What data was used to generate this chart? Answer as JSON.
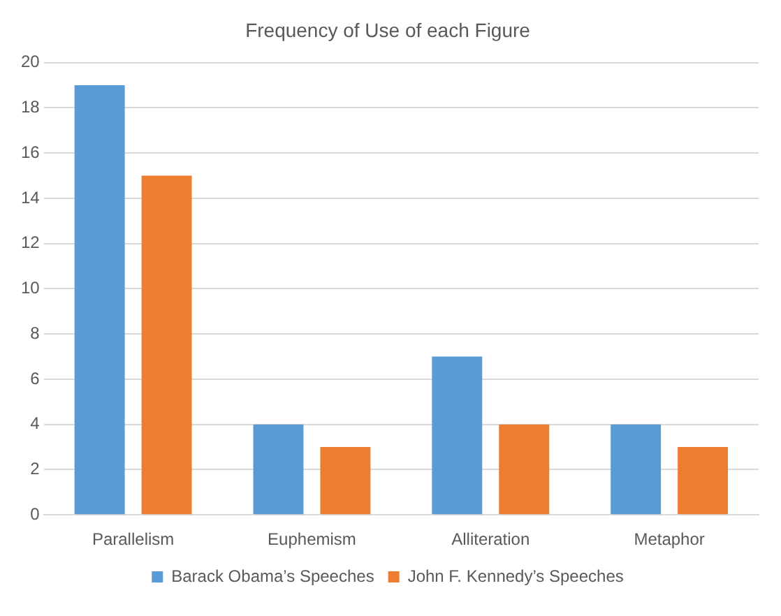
{
  "chart_data": {
    "type": "bar",
    "title": "Frequency of Use of each Figure",
    "categories": [
      "Parallelism",
      "Euphemism",
      "Alliteration",
      "Metaphor"
    ],
    "series": [
      {
        "name": "Barack Obama’s Speeches",
        "color": "#5b9bd5",
        "values": [
          19,
          4,
          7,
          4
        ]
      },
      {
        "name": "John F. Kennedy’s Speeches",
        "color": "#ed7d31",
        "values": [
          15,
          3,
          4,
          3
        ]
      }
    ],
    "ylim": [
      0,
      20
    ],
    "yticks": [
      0,
      2,
      4,
      6,
      8,
      10,
      12,
      14,
      16,
      18,
      20
    ],
    "grid": "y",
    "legend": "bottom"
  }
}
